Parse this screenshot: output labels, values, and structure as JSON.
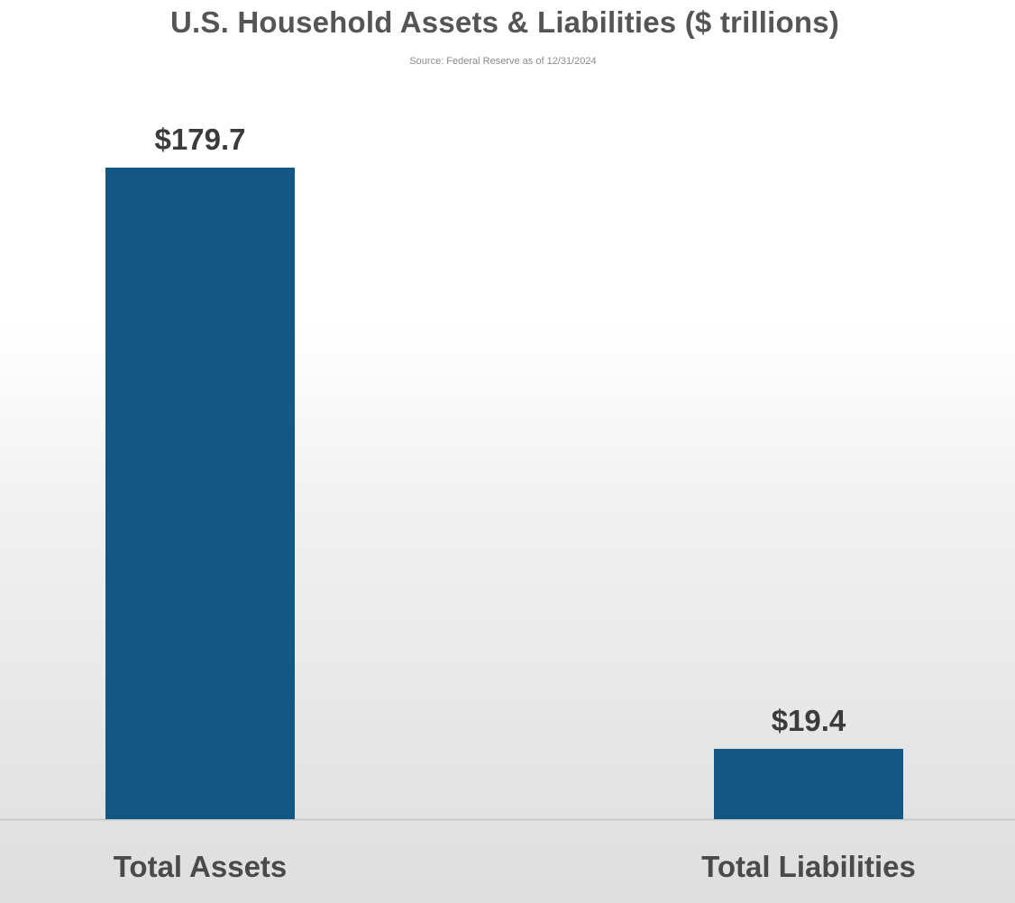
{
  "chart_data": {
    "type": "bar",
    "title": "U.S. Household Assets & Liabilities ($ trillions)",
    "subtitle": "Source: Federal Reserve as of 12/31/2024",
    "categories": [
      "Total Assets",
      "Total Liabilities"
    ],
    "values": [
      179.7,
      19.4
    ],
    "data_labels": [
      "$179.7",
      "$19.4"
    ],
    "xlabel": "",
    "ylabel": "",
    "ylim": [
      0,
      179.7
    ],
    "grid": false,
    "legend": "none"
  },
  "colors": {
    "bar": "#135784",
    "axis": "#c9c9c9"
  }
}
